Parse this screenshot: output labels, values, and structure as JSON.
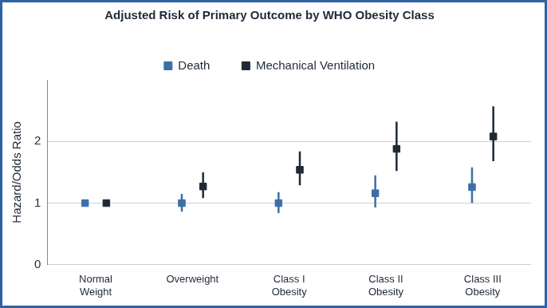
{
  "chart_data": {
    "type": "scatter",
    "title": "Adjusted Risk of Primary Outcome by WHO Obesity Class",
    "y_label": "Hazard/Odds Ratio",
    "categories": [
      "Normal Weight",
      "Overweight",
      "Class I Obesity",
      "Class II Obesity",
      "Class III Obesity"
    ],
    "series": [
      {
        "name": "Death",
        "color": "#3d6fa6",
        "marker": "square",
        "values": [
          1.0,
          1.0,
          1.0,
          1.16,
          1.26
        ],
        "lower": [
          null,
          0.86,
          0.84,
          0.93,
          1.0
        ],
        "upper": [
          null,
          1.15,
          1.18,
          1.45,
          1.58
        ]
      },
      {
        "name": "Mechanical Ventilation",
        "color": "#1f2937",
        "marker": "square",
        "values": [
          1.0,
          1.27,
          1.54,
          1.88,
          2.08
        ],
        "lower": [
          null,
          1.08,
          1.29,
          1.52,
          1.68
        ],
        "upper": [
          null,
          1.5,
          1.84,
          2.32,
          2.57
        ]
      }
    ],
    "ylim": [
      0,
      3
    ],
    "yticks": [
      0,
      1,
      2
    ],
    "grid": true,
    "legend": "top"
  }
}
